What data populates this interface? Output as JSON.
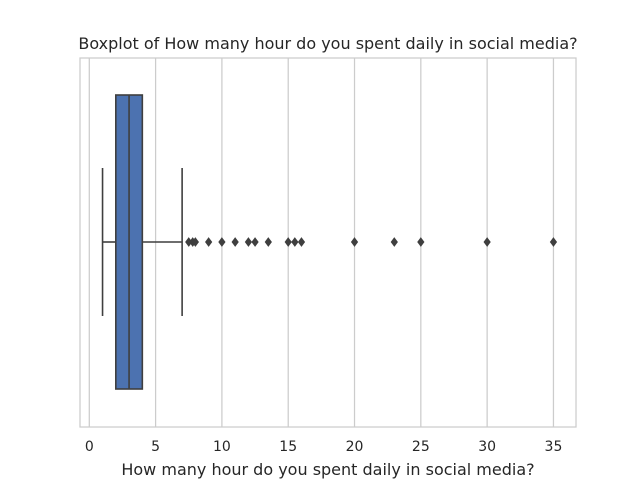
{
  "chart_data": {
    "type": "boxplot",
    "title": "Boxplot of How many hour do you spent daily in social media?",
    "xlabel": "How many hour do you spent daily in social media?",
    "ylabel": "",
    "orientation": "horizontal",
    "xlim": [
      -0.7,
      36.7
    ],
    "xticks": [
      0,
      5,
      10,
      15,
      20,
      25,
      30,
      35
    ],
    "xtick_labels": [
      "0",
      "5",
      "10",
      "15",
      "20",
      "25",
      "30",
      "35"
    ],
    "grid": true,
    "box": {
      "whisker_low": 1,
      "q1": 2,
      "median": 3,
      "q3": 4,
      "whisker_high": 7,
      "color": "#4c72b0"
    },
    "outliers": [
      7.5,
      7.8,
      8,
      9,
      10,
      11,
      12,
      12.5,
      13.5,
      15,
      15.5,
      16,
      20,
      23,
      25,
      30,
      35
    ],
    "colors": {
      "box_fill": "#4c72b0",
      "line": "#3f3f3f",
      "grid": "#cccccc",
      "spine": "#cccccc",
      "text": "#262626"
    }
  }
}
